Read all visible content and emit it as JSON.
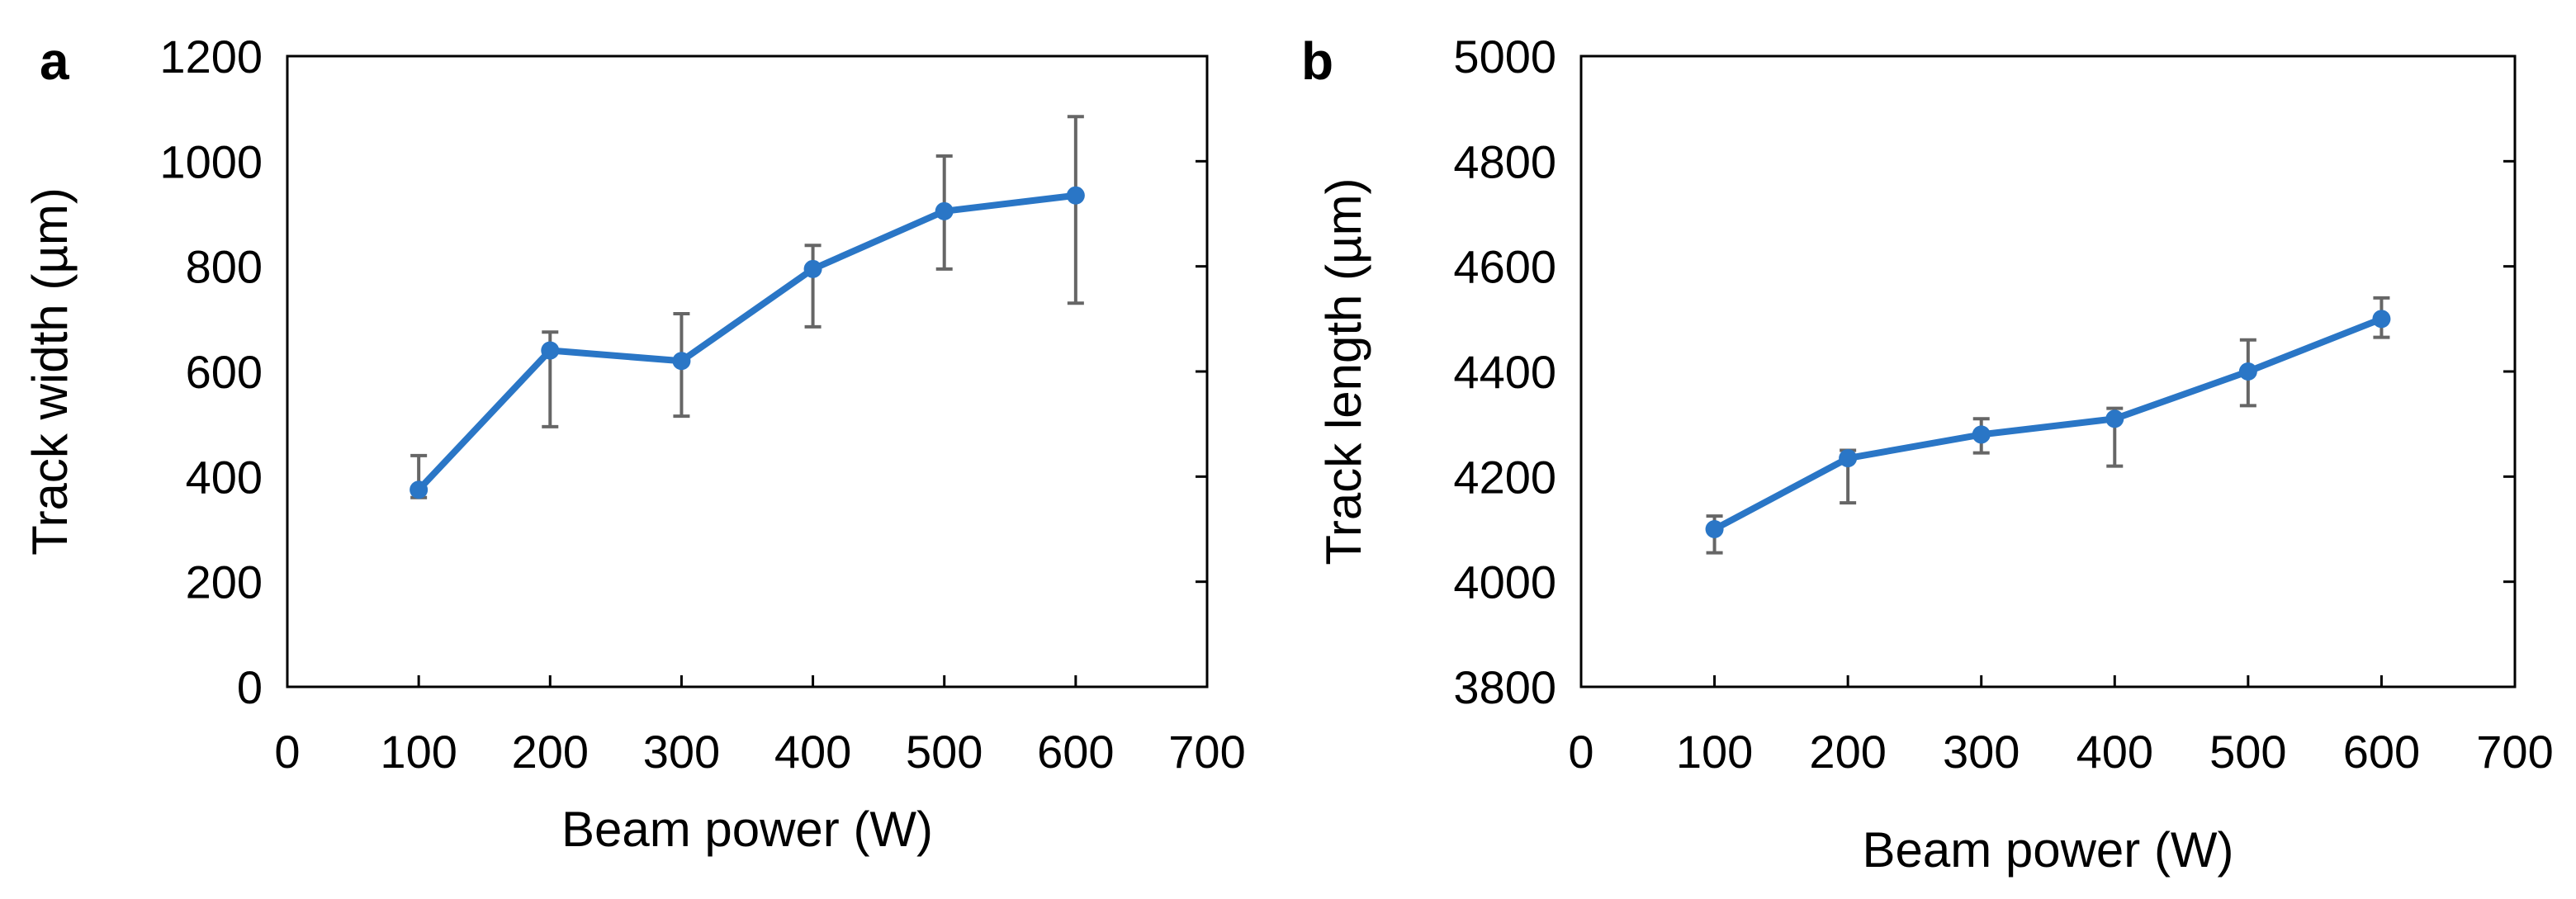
{
  "chart_data": [
    {
      "panel_label": "a",
      "type": "line",
      "xlabel": "Beam power (W)",
      "ylabel": "Track width (µm)",
      "xlim": [
        0,
        700
      ],
      "ylim": [
        0,
        1200
      ],
      "xticks": [
        0,
        100,
        200,
        300,
        400,
        500,
        600,
        700
      ],
      "yticks": [
        0,
        200,
        400,
        600,
        800,
        1000,
        1200
      ],
      "xtick_labels": [
        "0",
        "100",
        "200",
        "300",
        "400",
        "500",
        "600",
        "700"
      ],
      "ytick_labels": [
        "0",
        "200",
        "400",
        "600",
        "800",
        "1000",
        "1200"
      ],
      "grid": false,
      "series": [
        {
          "name": "Track width",
          "color": "#2a76c6",
          "x": [
            100,
            200,
            300,
            400,
            500,
            600
          ],
          "y": [
            375,
            640,
            620,
            795,
            905,
            935
          ],
          "err_low": [
            360,
            495,
            515,
            685,
            795,
            730
          ],
          "err_high": [
            440,
            675,
            710,
            840,
            1010,
            1085
          ]
        }
      ]
    },
    {
      "panel_label": "b",
      "type": "line",
      "xlabel": "Beam power (W)",
      "ylabel": "Track length (µm)",
      "xlim": [
        0,
        700
      ],
      "ylim": [
        3800,
        5000
      ],
      "xticks": [
        0,
        100,
        200,
        300,
        400,
        500,
        600,
        700
      ],
      "yticks": [
        3800,
        4000,
        4200,
        4400,
        4600,
        4800,
        5000
      ],
      "xtick_labels": [
        "0",
        "100",
        "200",
        "300",
        "400",
        "500",
        "600",
        "700"
      ],
      "ytick_labels": [
        "3800",
        "4000",
        "4200",
        "4400",
        "4600",
        "4800",
        "5000"
      ],
      "grid": false,
      "series": [
        {
          "name": "Track length",
          "color": "#2a76c6",
          "x": [
            100,
            200,
            300,
            400,
            500,
            600
          ],
          "y": [
            4100,
            4235,
            4280,
            4310,
            4400,
            4500
          ],
          "err_low": [
            4055,
            4150,
            4245,
            4220,
            4335,
            4465
          ],
          "err_high": [
            4125,
            4250,
            4310,
            4330,
            4460,
            4540
          ]
        }
      ]
    }
  ],
  "colors": {
    "series": "#2a76c6",
    "error_bar": "#666666",
    "axis": "#000000"
  }
}
